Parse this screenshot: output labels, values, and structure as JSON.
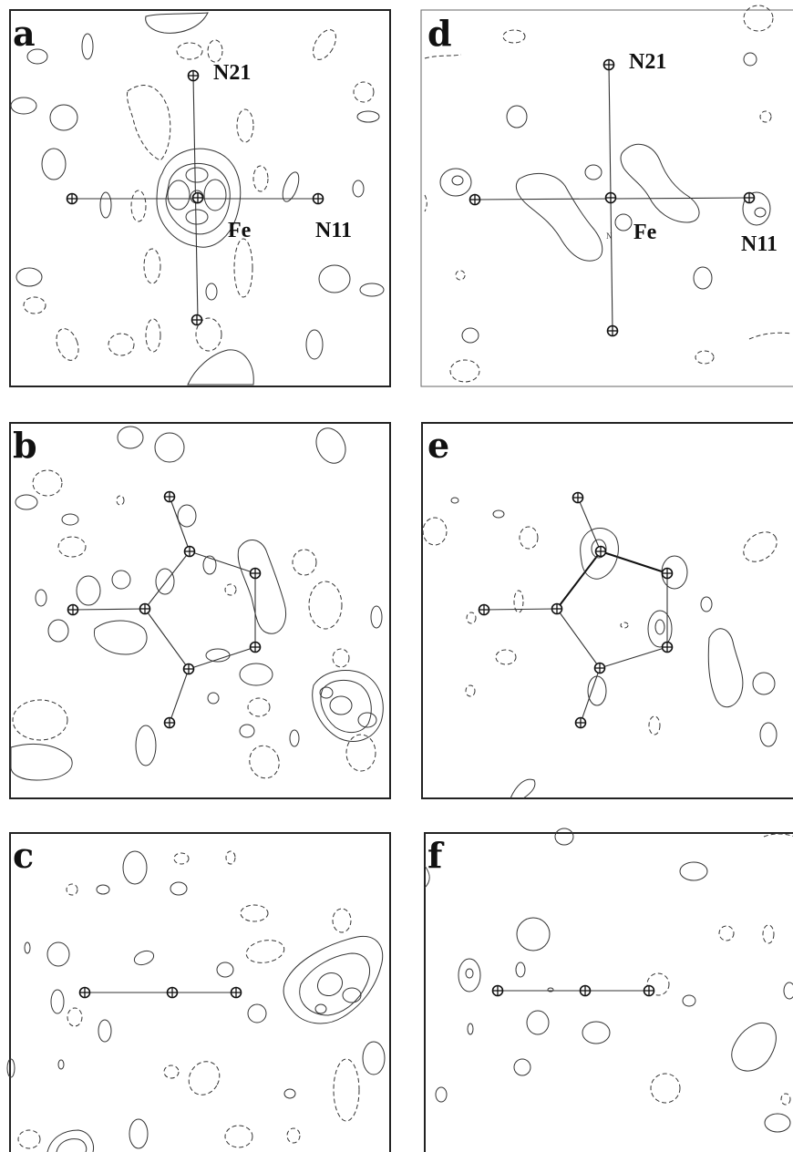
{
  "figure": {
    "panels": [
      {
        "id": "a",
        "label": "a",
        "atoms": [
          "N21",
          "Fe",
          "N11"
        ]
      },
      {
        "id": "b",
        "label": "b"
      },
      {
        "id": "c",
        "label": "c"
      },
      {
        "id": "d",
        "label": "d",
        "atoms": [
          "N21",
          "Fe",
          "N11"
        ],
        "tiny_mark": "N"
      },
      {
        "id": "e",
        "label": "e"
      },
      {
        "id": "f",
        "label": "f"
      }
    ]
  }
}
